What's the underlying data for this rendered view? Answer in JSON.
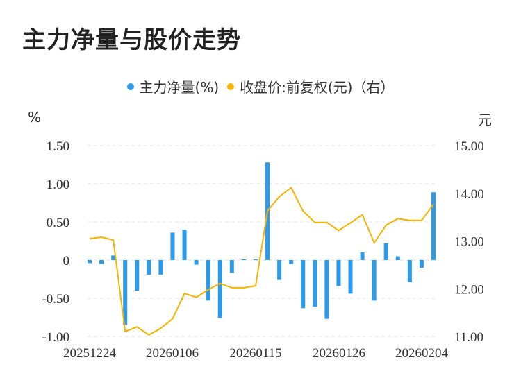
{
  "title": "主力净量与股价走势",
  "legend": {
    "bar_label": "主力净量(%)",
    "line_label": "收盘价:前复权(元)（右）"
  },
  "units": {
    "left": "%",
    "right": "元"
  },
  "colors": {
    "bar": "#2E9BEA",
    "line": "#F5B400",
    "grid": "#E3E3E3"
  },
  "chart_data": {
    "type": "bar+line",
    "x_tick_labels": [
      "20251224",
      "20260106",
      "20260115",
      "20260126",
      "20260204"
    ],
    "y_left": {
      "ticks": [
        "1.50",
        "1.00",
        "0.50",
        "0",
        "-0.50",
        "-1.00"
      ],
      "range": [
        -1.0,
        1.5
      ]
    },
    "y_right": {
      "ticks": [
        "15.00",
        "14.00",
        "13.00",
        "12.00",
        "11.00"
      ],
      "range": [
        11.0,
        15.0
      ]
    },
    "bars": [
      -0.04,
      -0.05,
      0.06,
      -0.85,
      -0.4,
      -0.19,
      -0.19,
      0.36,
      0.4,
      -0.06,
      -0.53,
      -0.76,
      -0.17,
      0.01,
      0.01,
      1.28,
      -0.26,
      -0.05,
      -0.63,
      -0.61,
      -0.77,
      -0.34,
      -0.44,
      0.1,
      -0.53,
      0.22,
      0.05,
      -0.29,
      -0.1,
      0.89
    ],
    "line": [
      13.05,
      13.08,
      13.02,
      11.1,
      11.2,
      11.03,
      11.17,
      11.37,
      11.9,
      11.82,
      11.98,
      12.11,
      12.02,
      12.02,
      12.06,
      13.63,
      13.93,
      14.12,
      13.63,
      13.39,
      13.39,
      13.22,
      13.38,
      13.55,
      12.96,
      13.33,
      13.47,
      13.43,
      13.43,
      13.77
    ]
  }
}
